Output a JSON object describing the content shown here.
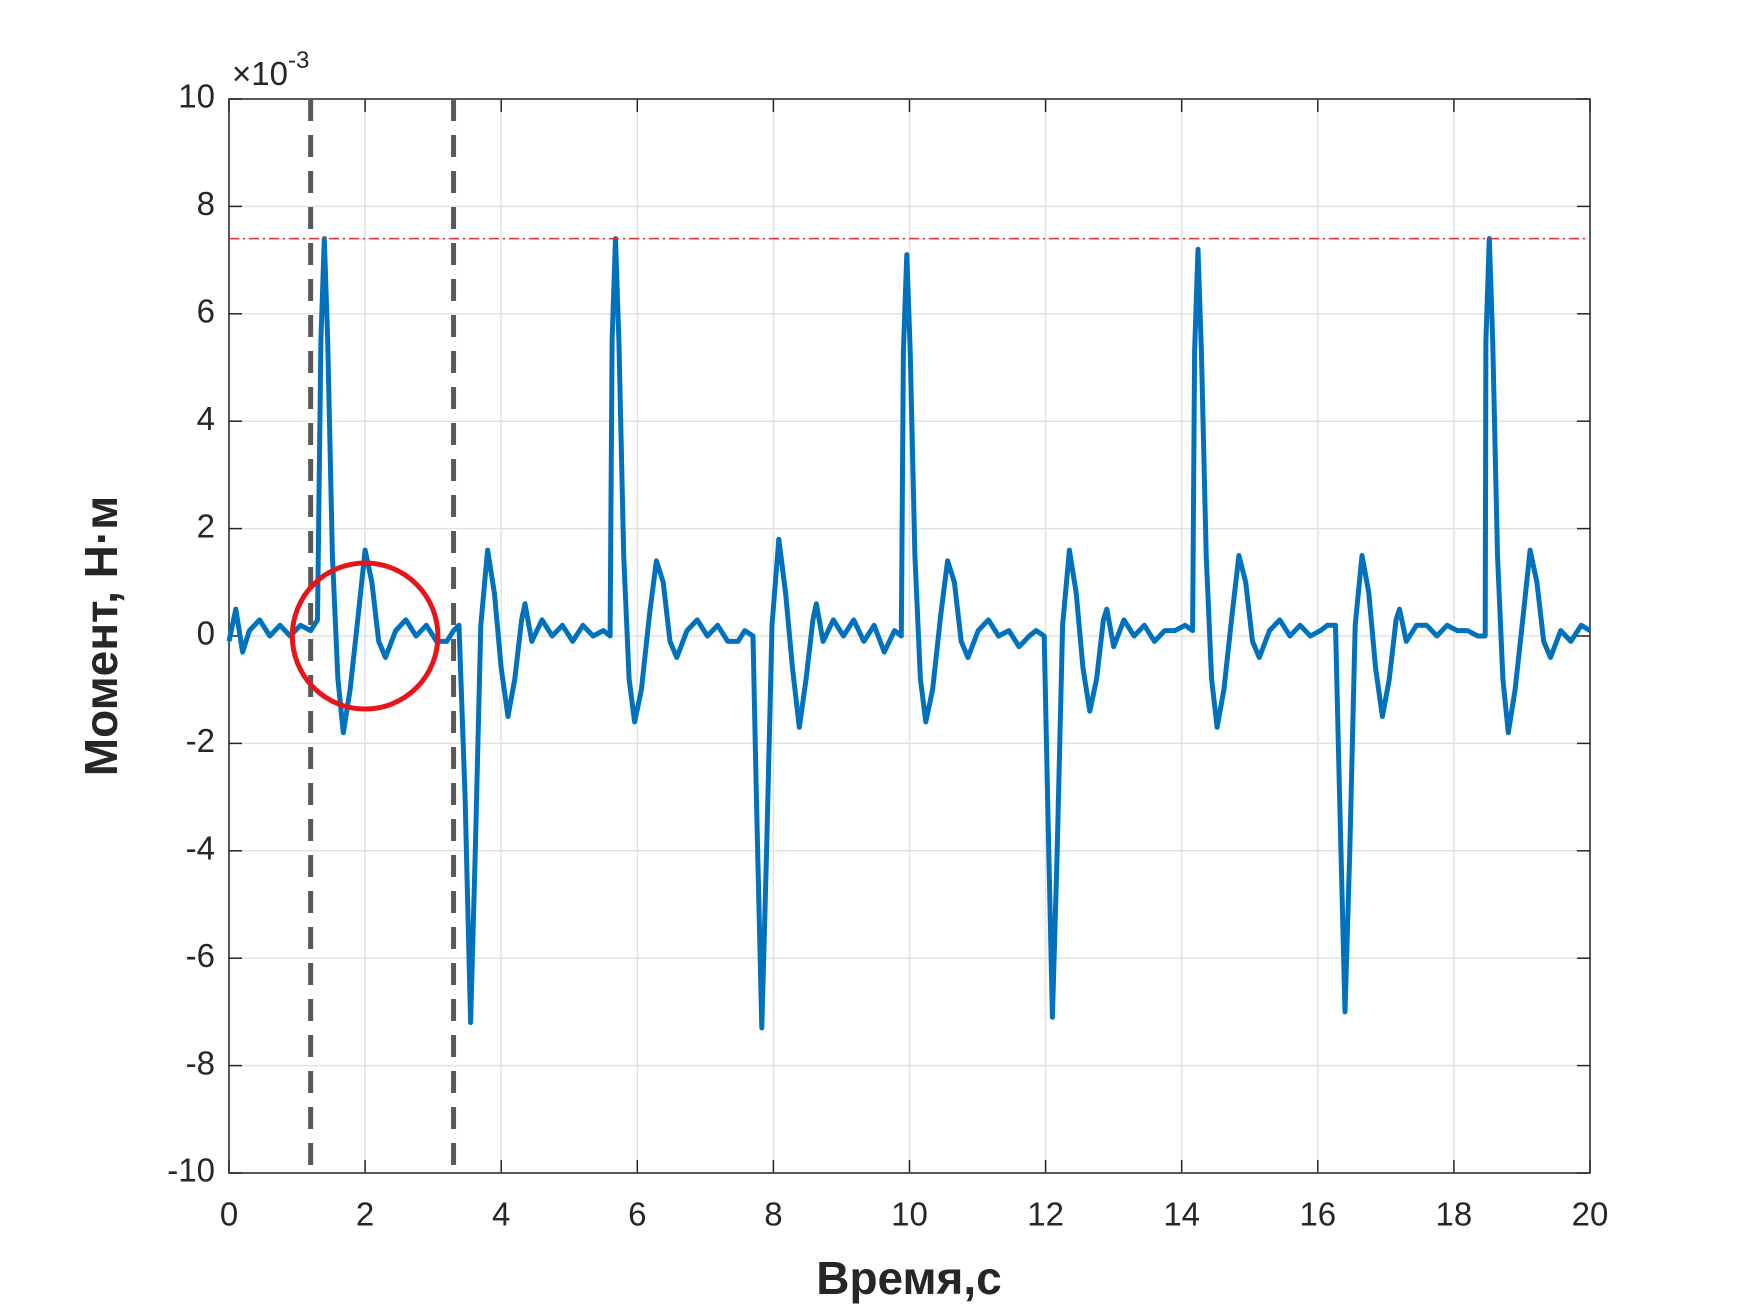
{
  "chart_data": {
    "type": "line",
    "xlabel": "Время,с",
    "ylabel": "Момент, Н·м",
    "y_multiplier": {
      "base": "×10",
      "exponent": "-3"
    },
    "xlim": [
      0,
      20
    ],
    "xticks": [
      0,
      2,
      4,
      6,
      8,
      10,
      12,
      14,
      16,
      18,
      20
    ],
    "ylim": [
      -10,
      10
    ],
    "yticks": [
      -10,
      -8,
      -6,
      -4,
      -2,
      0,
      2,
      4,
      6,
      8,
      10
    ],
    "grid": true,
    "series": [
      {
        "color": "#0072bd",
        "x": [
          0,
          0.1,
          0.2,
          0.3,
          0.45,
          0.6,
          0.75,
          0.9,
          1.05,
          1.2,
          1.3,
          1.35,
          1.4,
          1.45,
          1.52,
          1.6,
          1.68,
          1.78,
          1.9,
          2.0,
          2.1,
          2.2,
          2.3,
          2.45,
          2.6,
          2.75,
          2.9,
          3.05,
          3.2,
          3.3,
          3.38,
          3.47,
          3.55,
          3.62,
          3.7,
          3.8,
          3.9,
          4.0,
          4.1,
          4.2,
          4.3,
          4.35,
          4.45,
          4.6,
          4.75,
          4.9,
          5.05,
          5.2,
          5.35,
          5.5,
          5.6,
          5.63,
          5.68,
          5.73,
          5.8,
          5.88,
          5.96,
          6.06,
          6.18,
          6.28,
          6.38,
          6.48,
          6.58,
          6.73,
          6.88,
          7.03,
          7.18,
          7.33,
          7.48,
          7.58,
          7.7,
          7.75,
          7.83,
          7.9,
          7.98,
          8.08,
          8.18,
          8.28,
          8.38,
          8.48,
          8.58,
          8.63,
          8.73,
          8.88,
          9.03,
          9.18,
          9.33,
          9.48,
          9.63,
          9.78,
          9.88,
          9.91,
          9.96,
          10.01,
          10.08,
          10.16,
          10.24,
          10.34,
          10.46,
          10.56,
          10.66,
          10.76,
          10.86,
          11.01,
          11.16,
          11.31,
          11.46,
          11.61,
          11.76,
          11.86,
          11.98,
          12.03,
          12.1,
          12.17,
          12.25,
          12.35,
          12.45,
          12.55,
          12.65,
          12.75,
          12.85,
          12.9,
          13.0,
          13.15,
          13.3,
          13.45,
          13.6,
          13.75,
          13.9,
          14.05,
          14.16,
          14.19,
          14.24,
          14.29,
          14.36,
          14.44,
          14.52,
          14.62,
          14.74,
          14.84,
          14.94,
          15.04,
          15.14,
          15.29,
          15.44,
          15.59,
          15.74,
          15.89,
          16.04,
          16.14,
          16.26,
          16.32,
          16.4,
          16.47,
          16.55,
          16.65,
          16.75,
          16.85,
          16.95,
          17.05,
          17.15,
          17.2,
          17.3,
          17.45,
          17.6,
          17.75,
          17.9,
          18.05,
          18.2,
          18.35,
          18.46,
          18.47,
          18.52,
          18.57,
          18.64,
          18.72,
          18.8,
          18.9,
          19.02,
          19.12,
          19.22,
          19.32,
          19.42,
          19.57,
          19.72,
          19.87,
          20.0
        ],
        "values": [
          -0.1,
          0.5,
          -0.3,
          0.1,
          0.3,
          0,
          0.2,
          0,
          0.2,
          0.1,
          0.3,
          5.5,
          7.4,
          5.5,
          1.5,
          -0.8,
          -1.8,
          -1.0,
          0.4,
          1.6,
          1.0,
          -0.1,
          -0.4,
          0.1,
          0.3,
          0,
          0.2,
          -0.1,
          -0.1,
          0.1,
          0.2,
          -3,
          -7.2,
          -4,
          0.2,
          1.6,
          0.8,
          -0.6,
          -1.5,
          -0.8,
          0.3,
          0.6,
          -0.1,
          0.3,
          0,
          0.2,
          -0.1,
          0.2,
          0,
          0.1,
          0,
          5.5,
          7.4,
          5.5,
          1.5,
          -0.8,
          -1.6,
          -1.0,
          0.4,
          1.4,
          1.0,
          -0.1,
          -0.4,
          0.1,
          0.3,
          0,
          0.2,
          -0.1,
          -0.1,
          0.1,
          0,
          -3,
          -7.3,
          -4,
          0.2,
          1.8,
          0.8,
          -0.6,
          -1.7,
          -0.8,
          0.3,
          0.6,
          -0.1,
          0.3,
          0,
          0.3,
          -0.1,
          0.2,
          -0.3,
          0.1,
          0,
          5.3,
          7.1,
          5.3,
          1.5,
          -0.8,
          -1.6,
          -1.0,
          0.4,
          1.4,
          1.0,
          -0.1,
          -0.4,
          0.1,
          0.3,
          0,
          0.1,
          -0.2,
          0,
          0.1,
          0,
          -3,
          -7.1,
          -4,
          0.2,
          1.6,
          0.8,
          -0.6,
          -1.4,
          -0.8,
          0.3,
          0.5,
          -0.2,
          0.3,
          0,
          0.2,
          -0.1,
          0.1,
          0.1,
          0.2,
          0.1,
          5.3,
          7.2,
          5.3,
          1.5,
          -0.8,
          -1.7,
          -1.0,
          0.4,
          1.5,
          1.0,
          -0.1,
          -0.4,
          0.1,
          0.3,
          0,
          0.2,
          0,
          0.1,
          0.2,
          0.2,
          -3,
          -7.0,
          -4,
          0.2,
          1.5,
          0.8,
          -0.6,
          -1.5,
          -0.8,
          0.3,
          0.5,
          -0.1,
          0.2,
          0.2,
          0,
          0.2,
          0.1,
          0.1,
          0,
          0,
          5.5,
          7.4,
          5.5,
          1.5,
          -0.8,
          -1.8,
          -1.0,
          0.4,
          1.6,
          1.0,
          -0.1,
          -0.4,
          0.1,
          -0.1,
          0.2,
          0.1
        ]
      }
    ],
    "vlines": [
      {
        "x": 1.2,
        "color": "#595959"
      },
      {
        "x": 3.3,
        "color": "#595959"
      }
    ],
    "hline": {
      "y": 7.4,
      "color": "#e03030"
    },
    "circle": {
      "x": 2,
      "y": 0,
      "rx": 1.07,
      "ry": 1.36,
      "color": "#e8141a"
    }
  }
}
